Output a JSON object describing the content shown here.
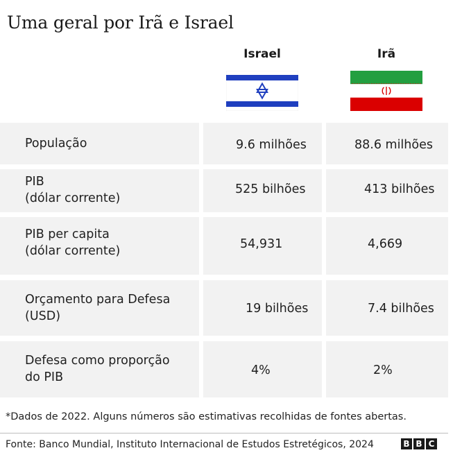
{
  "title": "Uma geral por Irã e Israel",
  "columns": [
    {
      "name": "Israel",
      "flag": "israel-flag"
    },
    {
      "name": "Irã",
      "flag": "iran-flag"
    }
  ],
  "rows": [
    {
      "label": "População",
      "israel": "9.6 milhões",
      "iran": "88.6 milhões"
    },
    {
      "label": "PIB\n(dólar corrente)",
      "israel": "525 bilhões",
      "iran": "413 bilhões"
    },
    {
      "label": "PIB per capita\n(dólar corrente)",
      "israel": "54,931",
      "iran": "4,669"
    },
    {
      "label": "Orçamento para Defesa\n(USD)",
      "israel": "19 bilhões",
      "iran": "7.4 bilhões"
    },
    {
      "label": "Defesa como proporção\ndo PIB",
      "israel": "4%",
      "iran": "2%"
    }
  ],
  "footnote": "*Dados de 2022. Alguns números são estimativas recolhidas de fontes abertas.",
  "source": "Fonte: Banco Mundial, Instituto Internacional de Estudos Estretégicos, 2024",
  "logo": {
    "letters": [
      "B",
      "B",
      "C"
    ]
  },
  "colors": {
    "row_bg": "#f2f2f2",
    "israel_blue": "#1f3fbf",
    "iran_green": "#239f40",
    "iran_red": "#da0000"
  }
}
